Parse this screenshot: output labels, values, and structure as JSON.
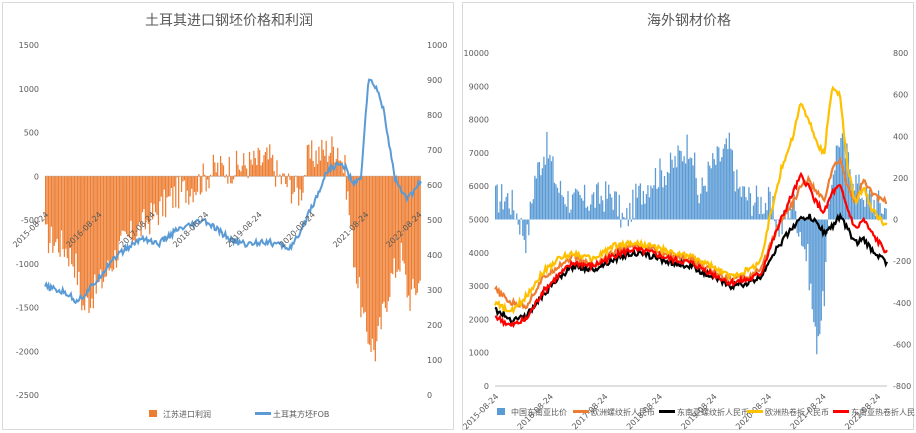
{
  "chart_data": [
    {
      "type": "bar+line",
      "title": "土耳其进口钢坯价格和利润",
      "x_tick_labels": [
        "2015-08-24",
        "2016-08-24",
        "2017-08-24",
        "2018-08-24",
        "2019-08-24",
        "2020-08-24",
        "2021-08-24",
        "2022-08-24"
      ],
      "y_left_ticks": [
        "1500",
        "1000",
        "500",
        "0",
        "-500",
        "-1000",
        "-1500",
        "-2000",
        "-2500"
      ],
      "y_left_lim": [
        -2500,
        1500
      ],
      "y_right_ticks": [
        "1000",
        "900",
        "800",
        "700",
        "600",
        "500",
        "400",
        "300",
        "200",
        "100",
        "0"
      ],
      "y_right_lim": [
        0,
        1000
      ],
      "series": [
        {
          "name": "江苏进口利润",
          "axis": "left",
          "kind": "bar",
          "color": "#ed7d31",
          "anchors_x": [
            0,
            0.05,
            0.08,
            0.1,
            0.15,
            0.2,
            0.25,
            0.3,
            0.35,
            0.4,
            0.45,
            0.5,
            0.55,
            0.6,
            0.62,
            0.65,
            0.68,
            0.7,
            0.72,
            0.75,
            0.78,
            0.8,
            0.82,
            0.85,
            0.88,
            0.9,
            0.92,
            0.95,
            0.97,
            1
          ],
          "anchors_y": [
            -700,
            -800,
            -1000,
            -1500,
            -1200,
            -800,
            -600,
            -400,
            -200,
            -100,
            80,
            100,
            150,
            200,
            0,
            -100,
            -200,
            200,
            250,
            300,
            350,
            50,
            -800,
            -1700,
            -2000,
            -1600,
            -1200,
            -900,
            -1400,
            -1200
          ]
        },
        {
          "name": "土耳其方坯FOB",
          "axis": "right",
          "kind": "line",
          "color": "#5b9bd5",
          "anchors_x": [
            0,
            0.06,
            0.08,
            0.1,
            0.14,
            0.18,
            0.22,
            0.26,
            0.3,
            0.35,
            0.38,
            0.42,
            0.46,
            0.5,
            0.54,
            0.58,
            0.62,
            0.65,
            0.68,
            0.7,
            0.72,
            0.75,
            0.78,
            0.8,
            0.82,
            0.84,
            0.86,
            0.88,
            0.9,
            0.93,
            0.96,
            0.98,
            1
          ],
          "anchors_y": [
            310,
            290,
            270,
            280,
            330,
            390,
            420,
            450,
            430,
            470,
            480,
            500,
            470,
            440,
            430,
            440,
            430,
            420,
            460,
            520,
            560,
            640,
            660,
            650,
            600,
            620,
            900,
            880,
            820,
            620,
            560,
            580,
            610
          ]
        }
      ]
    },
    {
      "type": "bar+line",
      "title": "海外钢材价格",
      "x_tick_labels": [
        "2015-08-24",
        "2016-08-24",
        "2017-08-24",
        "2018-08-24",
        "2019-08-24",
        "2020-08-24",
        "2021-08-24",
        "2022-08-24"
      ],
      "y_left_ticks": [
        "10000",
        "9000",
        "8000",
        "7000",
        "6000",
        "5000",
        "4000",
        "3000",
        "2000",
        "1000",
        "0"
      ],
      "y_left_lim": [
        0,
        10000
      ],
      "y_right_ticks": [
        "800",
        "600",
        "400",
        "200",
        "0",
        "-200",
        "-400",
        "-600",
        "-800"
      ],
      "y_right_lim": [
        -800,
        800
      ],
      "series": [
        {
          "name": "中国东南亚比价",
          "axis": "right",
          "kind": "bar",
          "color": "#5b9bd5",
          "anchors_x": [
            0,
            0.03,
            0.05,
            0.08,
            0.1,
            0.13,
            0.16,
            0.2,
            0.25,
            0.3,
            0.33,
            0.36,
            0.4,
            0.45,
            0.5,
            0.52,
            0.55,
            0.6,
            0.62,
            0.65,
            0.7,
            0.73,
            0.76,
            0.8,
            0.82,
            0.84,
            0.86,
            0.88,
            0.9,
            0.93,
            0.96,
            1
          ],
          "anchors_y": [
            100,
            110,
            50,
            -100,
            200,
            350,
            150,
            80,
            100,
            120,
            -20,
            100,
            200,
            250,
            380,
            100,
            250,
            350,
            150,
            100,
            80,
            -50,
            100,
            -200,
            -600,
            -400,
            200,
            400,
            300,
            150,
            100,
            50
          ]
        },
        {
          "name": "欧洲螺纹折人民币",
          "axis": "left",
          "kind": "line",
          "color": "#ed7d31",
          "anchors_x": [
            0,
            0.04,
            0.08,
            0.12,
            0.16,
            0.2,
            0.25,
            0.3,
            0.35,
            0.4,
            0.45,
            0.5,
            0.55,
            0.6,
            0.65,
            0.68,
            0.7,
            0.73,
            0.76,
            0.78,
            0.8,
            0.82,
            0.84,
            0.86,
            0.88,
            0.9,
            0.92,
            0.94,
            0.96,
            1
          ],
          "anchors_y": [
            2900,
            2500,
            2400,
            3200,
            3600,
            3900,
            3600,
            4000,
            4200,
            4100,
            3900,
            3800,
            3500,
            3200,
            3300,
            3500,
            4200,
            5000,
            5500,
            6000,
            6200,
            5800,
            5600,
            6500,
            6800,
            6000,
            5500,
            6200,
            5800,
            5500
          ]
        },
        {
          "name": "东南亚螺纹折人民币",
          "axis": "left",
          "kind": "line",
          "color": "#000000",
          "anchors_x": [
            0,
            0.04,
            0.08,
            0.12,
            0.16,
            0.2,
            0.25,
            0.3,
            0.35,
            0.4,
            0.45,
            0.5,
            0.55,
            0.6,
            0.65,
            0.68,
            0.7,
            0.73,
            0.76,
            0.78,
            0.8,
            0.82,
            0.84,
            0.86,
            0.88,
            0.9,
            0.92,
            0.94,
            0.96,
            1
          ],
          "anchors_y": [
            2300,
            2000,
            2100,
            2700,
            3200,
            3600,
            3500,
            3800,
            4000,
            3900,
            3700,
            3600,
            3300,
            3000,
            3100,
            3300,
            3800,
            4300,
            4800,
            5000,
            5100,
            4900,
            4600,
            4800,
            5100,
            4700,
            4300,
            4400,
            4100,
            3700
          ]
        },
        {
          "name": "欧洲热卷折人民币",
          "axis": "left",
          "kind": "line",
          "color": "#ffc000",
          "anchors_x": [
            0,
            0.04,
            0.08,
            0.12,
            0.16,
            0.2,
            0.25,
            0.3,
            0.35,
            0.4,
            0.45,
            0.5,
            0.55,
            0.6,
            0.65,
            0.68,
            0.7,
            0.73,
            0.76,
            0.78,
            0.8,
            0.82,
            0.84,
            0.86,
            0.88,
            0.9,
            0.92,
            0.94,
            0.96,
            1
          ],
          "anchors_y": [
            2500,
            2200,
            2700,
            3400,
            3800,
            4000,
            3800,
            4200,
            4300,
            4200,
            4000,
            3900,
            3600,
            3300,
            3500,
            3800,
            5000,
            6500,
            7500,
            8500,
            8000,
            7300,
            7000,
            9000,
            8700,
            6500,
            5500,
            6000,
            5300,
            4800
          ]
        },
        {
          "name": "东南亚热卷折人民币",
          "axis": "left",
          "kind": "line",
          "color": "#ff0000",
          "anchors_x": [
            0,
            0.04,
            0.08,
            0.12,
            0.16,
            0.2,
            0.25,
            0.3,
            0.35,
            0.4,
            0.45,
            0.5,
            0.55,
            0.6,
            0.65,
            0.68,
            0.7,
            0.73,
            0.76,
            0.78,
            0.8,
            0.82,
            0.84,
            0.86,
            0.88,
            0.9,
            0.92,
            0.94,
            0.96,
            1
          ],
          "anchors_y": [
            2100,
            1800,
            2000,
            2800,
            3300,
            3700,
            3600,
            3900,
            4100,
            4000,
            3800,
            3700,
            3400,
            3100,
            3200,
            3400,
            4100,
            5000,
            5800,
            6300,
            6000,
            5500,
            5200,
            5800,
            6000,
            5300,
            4700,
            5000,
            4600,
            4000
          ]
        }
      ]
    }
  ]
}
